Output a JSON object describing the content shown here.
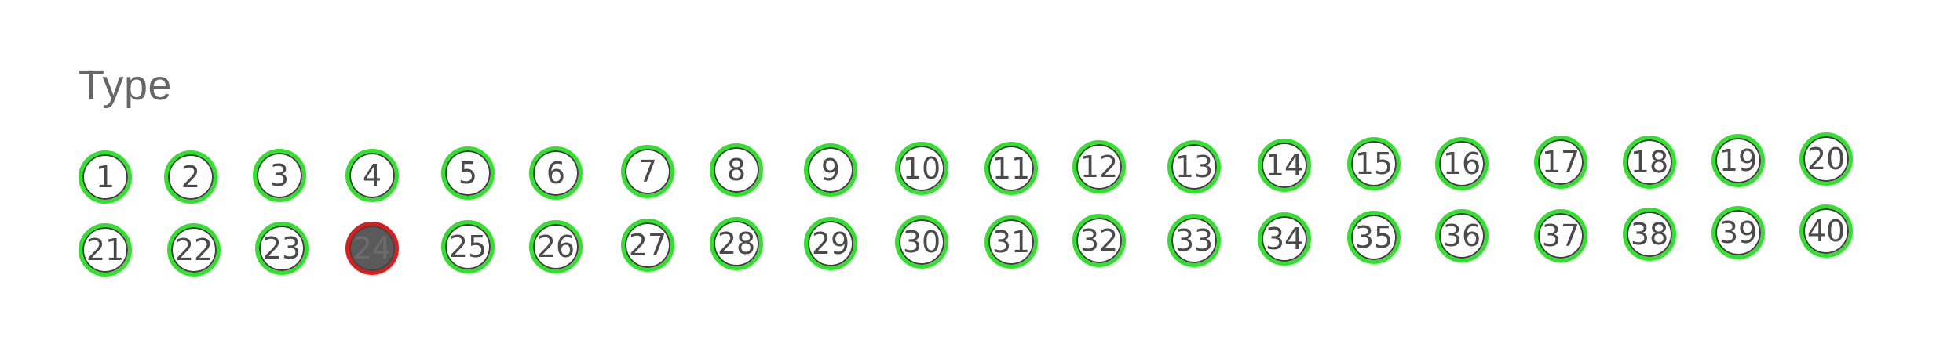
{
  "heading": "Type",
  "numbers": [
    "1",
    "2",
    "3",
    "4",
    "5",
    "6",
    "7",
    "8",
    "9",
    "10",
    "11",
    "12",
    "13",
    "14",
    "15",
    "16",
    "17",
    "18",
    "19",
    "20",
    "21",
    "22",
    "23",
    "24",
    "25",
    "26",
    "27",
    "28",
    "29",
    "30",
    "31",
    "32",
    "33",
    "34",
    "35",
    "36",
    "37",
    "38",
    "39",
    "40"
  ],
  "selected": "24",
  "colors": {
    "ring": "#2ee32a",
    "selected_ring": "#dd1c1c",
    "selected_fill": "#5a5a5a",
    "text": "#4a4a4a"
  }
}
